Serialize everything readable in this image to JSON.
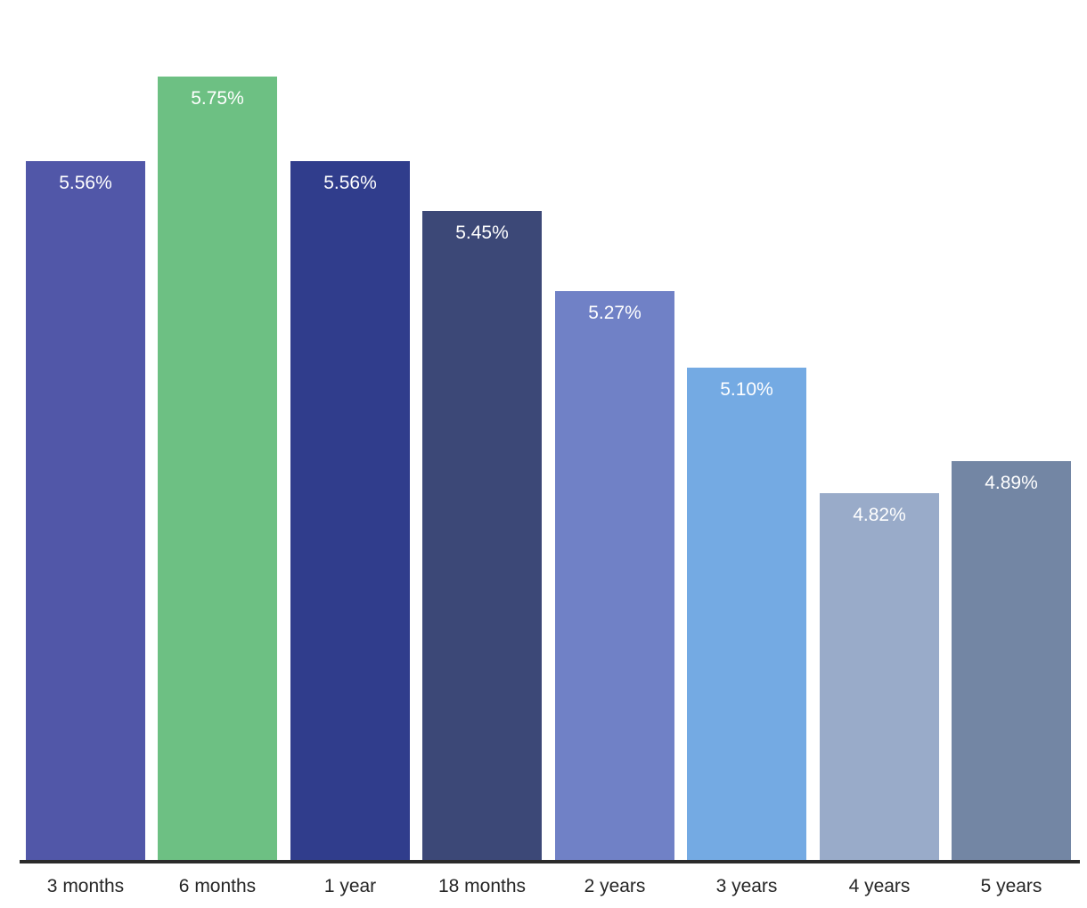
{
  "chart_data": {
    "type": "bar",
    "title": "",
    "xlabel": "",
    "ylabel": "",
    "categories": [
      "3 months",
      "6 months",
      "1 year",
      "18 months",
      "2 years",
      "3 years",
      "4 years",
      "5 years"
    ],
    "values": [
      5.56,
      5.75,
      5.56,
      5.45,
      5.27,
      5.1,
      4.82,
      4.89
    ],
    "data_labels": [
      "5.56%",
      "5.75%",
      "5.56%",
      "5.45%",
      "5.27%",
      "5.10%",
      "4.82%",
      "4.89%"
    ],
    "bar_colors": [
      "#5157A8",
      "#6DC083",
      "#303D8C",
      "#3C4877",
      "#7081C6",
      "#74AAE3",
      "#99ABC9",
      "#7386A4"
    ],
    "value_label_color": "#ffffff",
    "tick_label_color": "#262626",
    "axis_line_color": "#2b2b2b",
    "background_color": "#ffffff",
    "ylim": [
      4.0,
      5.9
    ],
    "grid": false,
    "legend_position": "none",
    "y_axis_visible": false,
    "x_axis_visible": true
  }
}
